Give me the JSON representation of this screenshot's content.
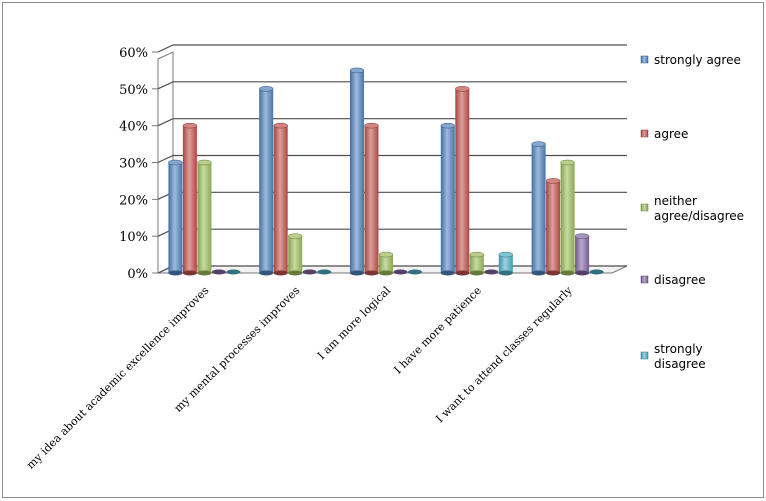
{
  "chart_data": {
    "type": "bar",
    "categories": [
      "my idea about academic excellence improves",
      "my mental processes improves",
      "I am more logical",
      "I have more patience",
      "I want to attend classes regularly"
    ],
    "series": [
      {
        "name": "strongly agree",
        "values": [
          30,
          50,
          55,
          40,
          35
        ],
        "color": "#4f81bd"
      },
      {
        "name": "agree",
        "values": [
          40,
          40,
          40,
          50,
          25
        ],
        "color": "#c0504d"
      },
      {
        "name": "neither agree/disagree",
        "values": [
          30,
          10,
          5,
          5,
          30
        ],
        "color": "#9bbb59"
      },
      {
        "name": "disagree",
        "values": [
          0,
          0,
          0,
          0,
          10
        ],
        "color": "#8064a2"
      },
      {
        "name": "strongly disagree",
        "values": [
          0,
          0,
          0,
          5,
          0
        ],
        "color": "#4bacc6"
      }
    ],
    "yticks": [
      "0%",
      "10%",
      "20%",
      "30%",
      "40%",
      "50%",
      "60%"
    ],
    "ylim": [
      0,
      60
    ],
    "grid": true,
    "legend": "right"
  }
}
